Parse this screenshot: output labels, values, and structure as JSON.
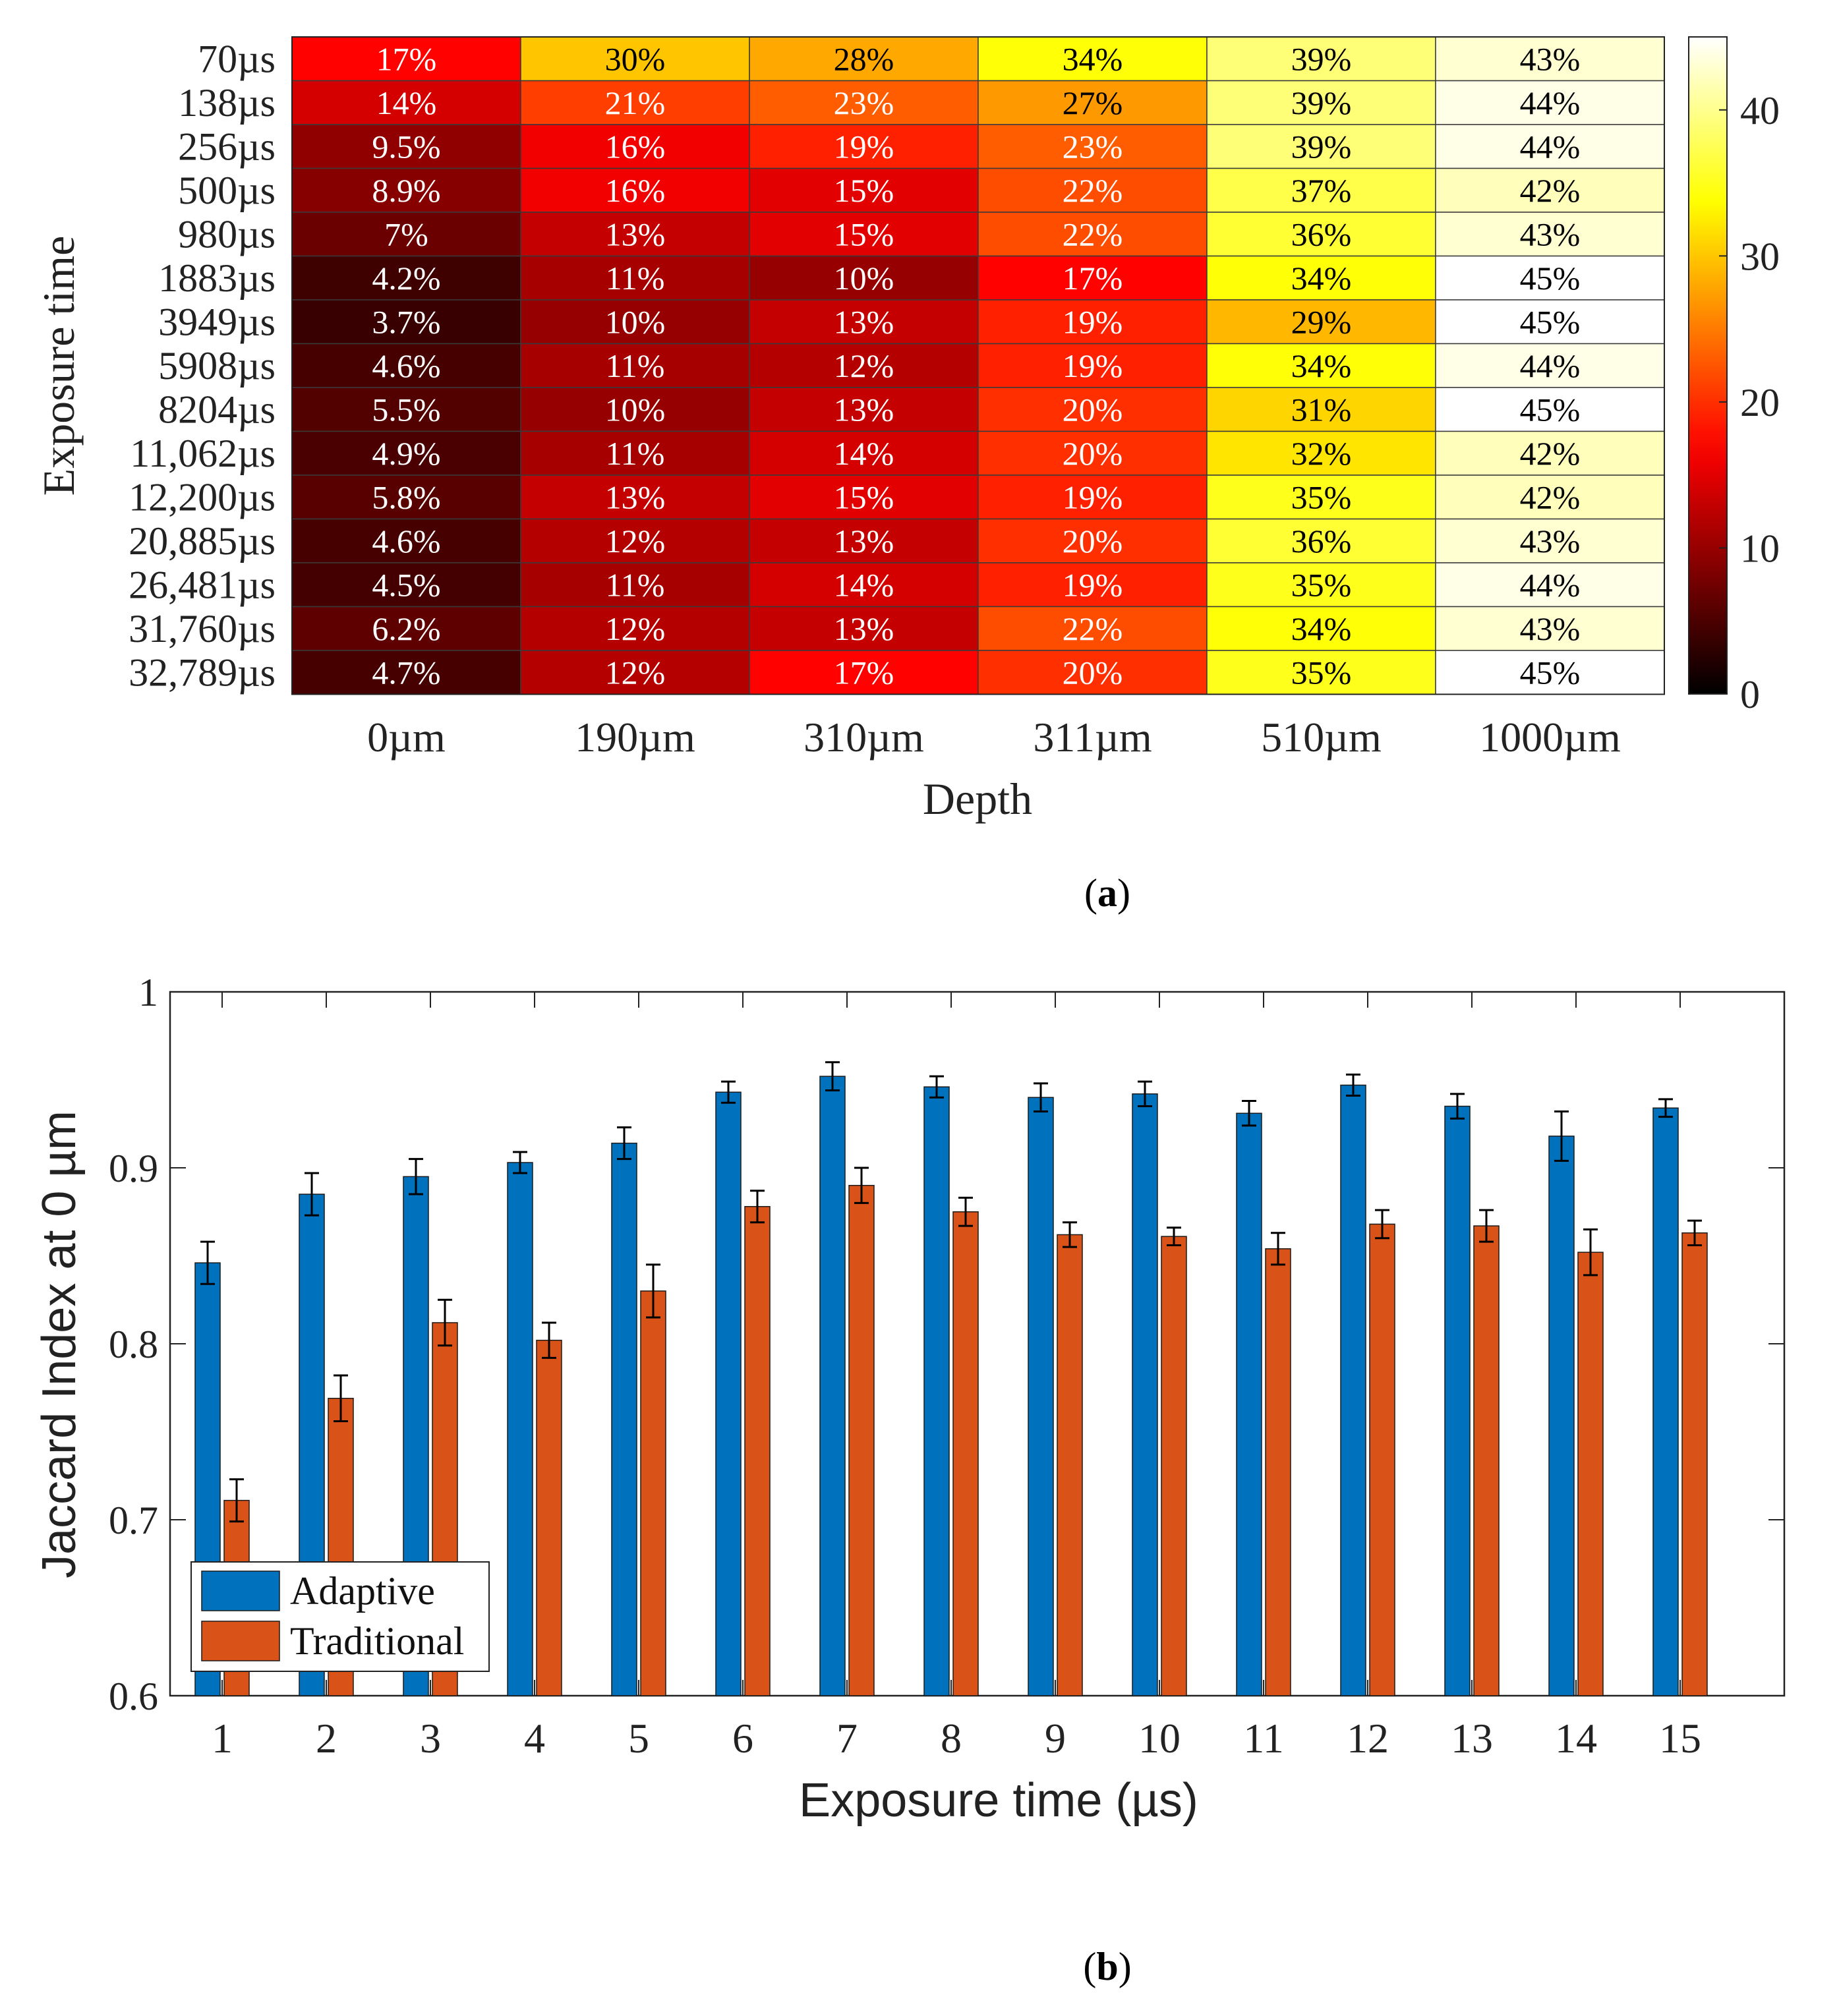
{
  "chart_data": [
    {
      "type": "heatmap",
      "panel_label": "a",
      "title": "",
      "xlabel": "Depth",
      "ylabel": "Exposure time",
      "x_categories": [
        "0µm",
        "190µm",
        "310µm",
        "311µm",
        "510µm",
        "1000µm"
      ],
      "y_categories": [
        "70µs",
        "138µs",
        "256µs",
        "500µs",
        "980µs",
        "1883µs",
        "3949µs",
        "5908µs",
        "8204µs",
        "11,062µs",
        "12,200µs",
        "20,885µs",
        "26,481µs",
        "31,760µs",
        "32,789µs"
      ],
      "values": [
        [
          17,
          30,
          28,
          34,
          39,
          43
        ],
        [
          14,
          21,
          23,
          27,
          39,
          44
        ],
        [
          9.5,
          16,
          19,
          23,
          39,
          44
        ],
        [
          8.9,
          16,
          15,
          22,
          37,
          42
        ],
        [
          7,
          13,
          15,
          22,
          36,
          43
        ],
        [
          4.2,
          11,
          10,
          17,
          34,
          45
        ],
        [
          3.7,
          10,
          13,
          19,
          29,
          45
        ],
        [
          4.6,
          11,
          12,
          19,
          34,
          44
        ],
        [
          5.5,
          10,
          13,
          20,
          31,
          45
        ],
        [
          4.9,
          11,
          14,
          20,
          32,
          42
        ],
        [
          5.8,
          13,
          15,
          19,
          35,
          42
        ],
        [
          4.6,
          12,
          13,
          20,
          36,
          43
        ],
        [
          4.5,
          11,
          14,
          19,
          35,
          44
        ],
        [
          6.2,
          12,
          13,
          22,
          34,
          43
        ],
        [
          4.7,
          12,
          17,
          20,
          35,
          45
        ]
      ],
      "cell_labels": [
        [
          "17%",
          "30%",
          "28%",
          "34%",
          "39%",
          "43%"
        ],
        [
          "14%",
          "21%",
          "23%",
          "27%",
          "39%",
          "44%"
        ],
        [
          "9.5%",
          "16%",
          "19%",
          "23%",
          "39%",
          "44%"
        ],
        [
          "8.9%",
          "16%",
          "15%",
          "22%",
          "37%",
          "42%"
        ],
        [
          "7%",
          "13%",
          "15%",
          "22%",
          "36%",
          "43%"
        ],
        [
          "4.2%",
          "11%",
          "10%",
          "17%",
          "34%",
          "45%"
        ],
        [
          "3.7%",
          "10%",
          "13%",
          "19%",
          "29%",
          "45%"
        ],
        [
          "4.6%",
          "11%",
          "12%",
          "19%",
          "34%",
          "44%"
        ],
        [
          "5.5%",
          "10%",
          "13%",
          "20%",
          "31%",
          "45%"
        ],
        [
          "4.9%",
          "11%",
          "14%",
          "20%",
          "32%",
          "42%"
        ],
        [
          "5.8%",
          "13%",
          "15%",
          "19%",
          "35%",
          "42%"
        ],
        [
          "4.6%",
          "12%",
          "13%",
          "20%",
          "36%",
          "43%"
        ],
        [
          "4.5%",
          "11%",
          "14%",
          "19%",
          "35%",
          "44%"
        ],
        [
          "6.2%",
          "12%",
          "13%",
          "22%",
          "34%",
          "43%"
        ],
        [
          "4.7%",
          "12%",
          "17%",
          "20%",
          "35%",
          "45%"
        ]
      ],
      "colorbar": {
        "range": [
          0,
          45
        ],
        "ticks": [
          0,
          10,
          20,
          30,
          40
        ],
        "tick_labels": [
          "0",
          "10",
          "20",
          "30",
          "40"
        ],
        "colormap": "hot"
      }
    },
    {
      "type": "bar",
      "panel_label": "b",
      "title": "",
      "xlabel": "Exposure time (µs)",
      "ylabel": "Jaccard Index at 0 µm",
      "categories": [
        "1",
        "2",
        "3",
        "4",
        "5",
        "6",
        "7",
        "8",
        "9",
        "10",
        "11",
        "12",
        "13",
        "14",
        "15"
      ],
      "ylim": [
        0.6,
        1
      ],
      "yticks": [
        0.6,
        0.7,
        0.8,
        0.9,
        1
      ],
      "ytick_labels": [
        "0.6",
        "0.7",
        "0.8",
        "0.9",
        "1"
      ],
      "legend_position": "bottom-left",
      "series": [
        {
          "name": "Adaptive",
          "color": "#0072BD",
          "values": [
            0.846,
            0.885,
            0.895,
            0.903,
            0.914,
            0.943,
            0.952,
            0.946,
            0.94,
            0.942,
            0.931,
            0.947,
            0.935,
            0.918,
            0.934
          ],
          "errors": [
            0.012,
            0.012,
            0.01,
            0.006,
            0.009,
            0.006,
            0.008,
            0.006,
            0.008,
            0.007,
            0.007,
            0.006,
            0.007,
            0.014,
            0.005
          ]
        },
        {
          "name": "Traditional",
          "color": "#D95319",
          "values": [
            0.711,
            0.769,
            0.812,
            0.802,
            0.83,
            0.878,
            0.89,
            0.875,
            0.862,
            0.861,
            0.854,
            0.868,
            0.867,
            0.852,
            0.863
          ],
          "errors": [
            0.012,
            0.013,
            0.013,
            0.01,
            0.015,
            0.009,
            0.01,
            0.008,
            0.007,
            0.005,
            0.009,
            0.008,
            0.009,
            0.013,
            0.007
          ]
        }
      ]
    }
  ]
}
